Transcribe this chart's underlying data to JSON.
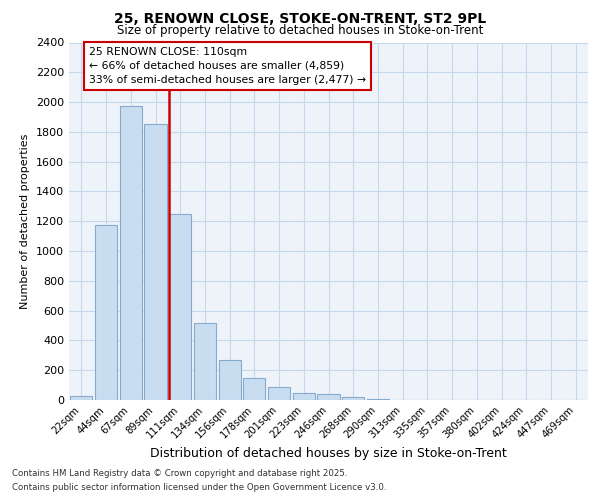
{
  "title1": "25, RENOWN CLOSE, STOKE-ON-TRENT, ST2 9PL",
  "title2": "Size of property relative to detached houses in Stoke-on-Trent",
  "xlabel": "Distribution of detached houses by size in Stoke-on-Trent",
  "ylabel": "Number of detached properties",
  "categories": [
    "22sqm",
    "44sqm",
    "67sqm",
    "89sqm",
    "111sqm",
    "134sqm",
    "156sqm",
    "178sqm",
    "201sqm",
    "223sqm",
    "246sqm",
    "268sqm",
    "290sqm",
    "313sqm",
    "335sqm",
    "357sqm",
    "380sqm",
    "402sqm",
    "424sqm",
    "447sqm",
    "469sqm"
  ],
  "values": [
    30,
    1175,
    1975,
    1850,
    1250,
    520,
    270,
    150,
    85,
    45,
    40,
    20,
    5,
    3,
    2,
    2,
    1,
    1,
    1,
    1,
    1
  ],
  "bar_color": "#c8ddf0",
  "bar_edge_color": "#88aacc",
  "vline_color": "#cc0000",
  "vline_pos": 4.5,
  "annotation_line1": "25 RENOWN CLOSE: 110sqm",
  "annotation_line2": "← 66% of detached houses are smaller (4,859)",
  "annotation_line3": "33% of semi-detached houses are larger (2,477) →",
  "ylim": [
    0,
    2400
  ],
  "yticks": [
    0,
    200,
    400,
    600,
    800,
    1000,
    1200,
    1400,
    1600,
    1800,
    2000,
    2200,
    2400
  ],
  "grid_color": "#c8d8ec",
  "bg_color": "#eef3fa",
  "fig_bg_color": "#ffffff",
  "footer1": "Contains HM Land Registry data © Crown copyright and database right 2025.",
  "footer2": "Contains public sector information licensed under the Open Government Licence v3.0."
}
